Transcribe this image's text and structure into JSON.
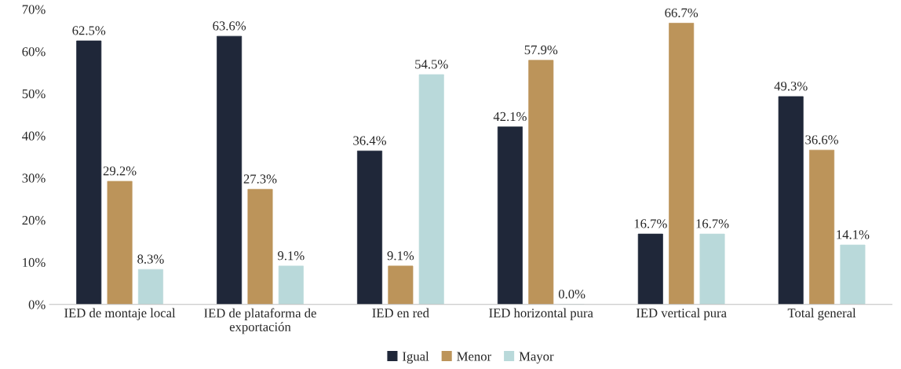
{
  "chart_data": {
    "type": "bar",
    "categories": [
      "IED de montaje local",
      "IED de plataforma de\nexportación",
      "IED en red",
      "IED horizontal pura",
      "IED vertical pura",
      "Total general"
    ],
    "series": [
      {
        "name": "Igual",
        "color": "#1f2739",
        "values": [
          62.5,
          63.6,
          36.4,
          42.1,
          16.7,
          49.3
        ],
        "value_labels": [
          "62.5%",
          "63.6%",
          "36.4%",
          "42.1%",
          "16.7%",
          "49.3%"
        ]
      },
      {
        "name": "Menor",
        "color": "#bc945a",
        "values": [
          29.2,
          27.3,
          9.1,
          57.9,
          66.7,
          36.6
        ],
        "value_labels": [
          "29.2%",
          "27.3%",
          "9.1%",
          "57.9%",
          "66.7%",
          "36.6%"
        ]
      },
      {
        "name": "Mayor",
        "color": "#b9d9da",
        "values": [
          8.3,
          9.1,
          54.5,
          0.0,
          16.7,
          14.1
        ],
        "value_labels": [
          "8.3%",
          "9.1%",
          "54.5%",
          "0.0%",
          "16.7%",
          "14.1%"
        ]
      }
    ],
    "ylim": [
      0,
      70
    ],
    "yticks": [
      {
        "value": 0,
        "label": "0%"
      },
      {
        "value": 10,
        "label": "10%"
      },
      {
        "value": 20,
        "label": "20%"
      },
      {
        "value": 30,
        "label": "30%"
      },
      {
        "value": 40,
        "label": "40%"
      },
      {
        "value": 50,
        "label": "50%"
      },
      {
        "value": 60,
        "label": "60%"
      },
      {
        "value": 70,
        "label": "70%"
      }
    ],
    "grid": false,
    "legend": "bottom"
  }
}
